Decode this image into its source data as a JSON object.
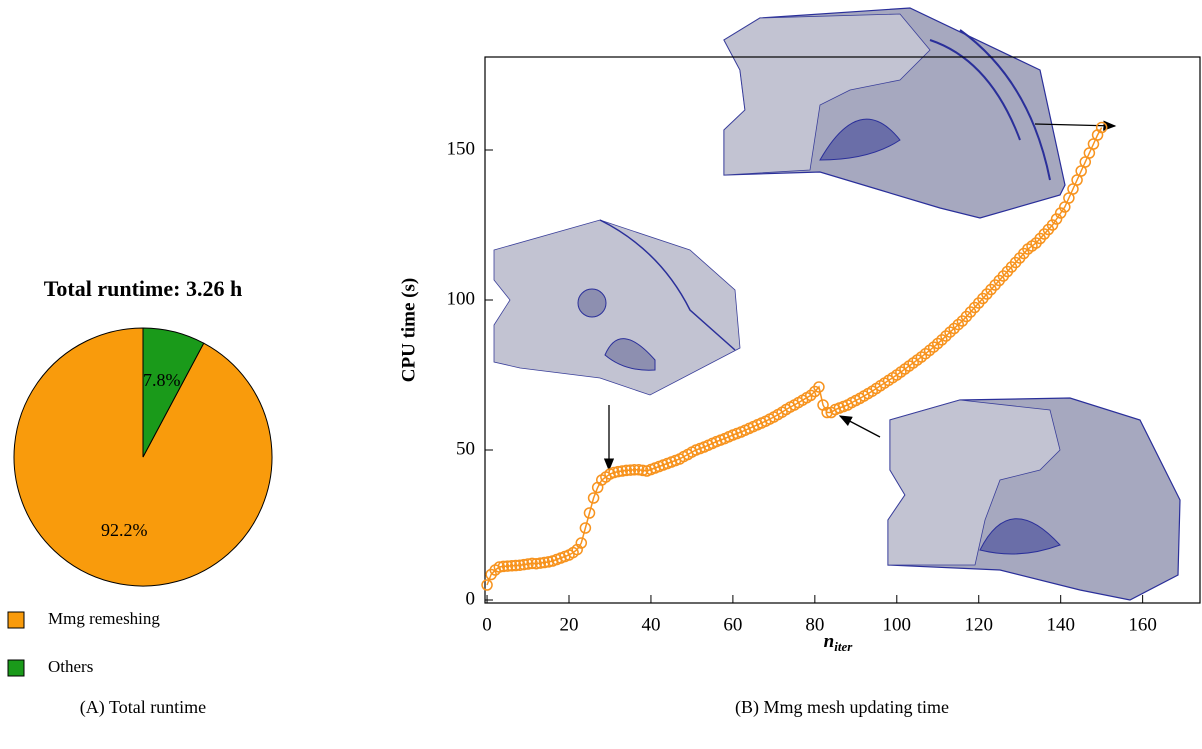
{
  "chart_data": [
    {
      "type": "pie",
      "title": "Total runtime: 3.26 h",
      "categories": [
        "Mmg remeshing",
        "Others"
      ],
      "values": [
        92.2,
        7.8
      ],
      "value_labels": [
        "92.2%",
        "7.8%"
      ],
      "colors": [
        "#f99b0c",
        "#1a9a1a"
      ],
      "caption": "(A) Total runtime"
    },
    {
      "type": "line",
      "ylabel": "CPU time (s)",
      "xlabel": "n",
      "xlabel_subscript": "iter",
      "caption": "(B) Mmg mesh updating time",
      "xlim": [
        -0.5,
        174
      ],
      "ylim": [
        -1,
        181
      ],
      "xticks": [
        0,
        20,
        40,
        60,
        80,
        100,
        120,
        140,
        160
      ],
      "yticks": [
        0,
        50,
        100,
        150
      ],
      "x": [
        0,
        1,
        2,
        3,
        4,
        5,
        6,
        7,
        8,
        9,
        10,
        11,
        12,
        13,
        14,
        15,
        16,
        17,
        18,
        19,
        20,
        21,
        22,
        23,
        24,
        25,
        26,
        27,
        28,
        29,
        30,
        31,
        32,
        33,
        34,
        35,
        36,
        37,
        38,
        39,
        40,
        41,
        42,
        43,
        44,
        45,
        46,
        47,
        48,
        49,
        50,
        51,
        52,
        53,
        54,
        55,
        56,
        57,
        58,
        59,
        60,
        61,
        62,
        63,
        64,
        65,
        66,
        67,
        68,
        69,
        70,
        71,
        72,
        73,
        74,
        75,
        76,
        77,
        78,
        79,
        80,
        81,
        82,
        83,
        84,
        85,
        86,
        87,
        88,
        89,
        90,
        91,
        92,
        93,
        94,
        95,
        96,
        97,
        98,
        99,
        100,
        101,
        102,
        103,
        104,
        105,
        106,
        107,
        108,
        109,
        110,
        111,
        112,
        113,
        114,
        115,
        116,
        117,
        118,
        119,
        120,
        121,
        122,
        123,
        124,
        125,
        126,
        127,
        128,
        129,
        130,
        131,
        132,
        133,
        134,
        135,
        136,
        137,
        138,
        139,
        140,
        141,
        142,
        143,
        144,
        145,
        146,
        147,
        148,
        149,
        150
      ],
      "series": [
        {
          "color": "#f7931e",
          "values": [
            5.0,
            8.5,
            10.0,
            11.0,
            11.2,
            11.3,
            11.4,
            11.5,
            11.6,
            11.8,
            12.0,
            12.2,
            12.1,
            12.3,
            12.5,
            12.7,
            13.0,
            13.5,
            14.0,
            14.5,
            15.0,
            15.8,
            16.8,
            19.0,
            24.0,
            29.0,
            34.0,
            37.5,
            40.0,
            41.0,
            42.0,
            42.5,
            42.8,
            43.0,
            43.2,
            43.3,
            43.4,
            43.4,
            43.2,
            43.0,
            43.5,
            44.0,
            44.5,
            45.0,
            45.5,
            46.0,
            46.5,
            47.0,
            47.8,
            48.5,
            49.3,
            50.0,
            50.5,
            51.0,
            51.6,
            52.2,
            52.8,
            53.3,
            53.8,
            54.4,
            55.0,
            55.5,
            56.0,
            56.6,
            57.2,
            57.8,
            58.4,
            59.0,
            59.6,
            60.3,
            61.0,
            61.8,
            62.6,
            63.5,
            64.3,
            65.0,
            65.8,
            66.6,
            67.4,
            68.2,
            69.5,
            71.0,
            65.0,
            62.5,
            62.5,
            63.5,
            64.0,
            64.5,
            65.0,
            65.8,
            66.5,
            67.2,
            68.0,
            68.8,
            69.6,
            70.5,
            71.4,
            72.3,
            73.2,
            74.1,
            75.0,
            76.0,
            77.0,
            78.0,
            79.0,
            80.0,
            81.0,
            82.1,
            83.2,
            84.3,
            85.5,
            86.7,
            88.0,
            89.3,
            90.5,
            91.8,
            93.0,
            94.5,
            96.0,
            97.5,
            99.0,
            100.5,
            102.0,
            103.5,
            105.0,
            106.5,
            108.0,
            109.5,
            111.0,
            112.5,
            114.0,
            115.5,
            117.0,
            118.0,
            119.0,
            120.5,
            122.0,
            123.5,
            125.0,
            127.0,
            129.0,
            131.0,
            134.0,
            137.0,
            140.0,
            143.0,
            146.0,
            149.0,
            152.0,
            155.0,
            157.5
          ]
        }
      ]
    }
  ]
}
